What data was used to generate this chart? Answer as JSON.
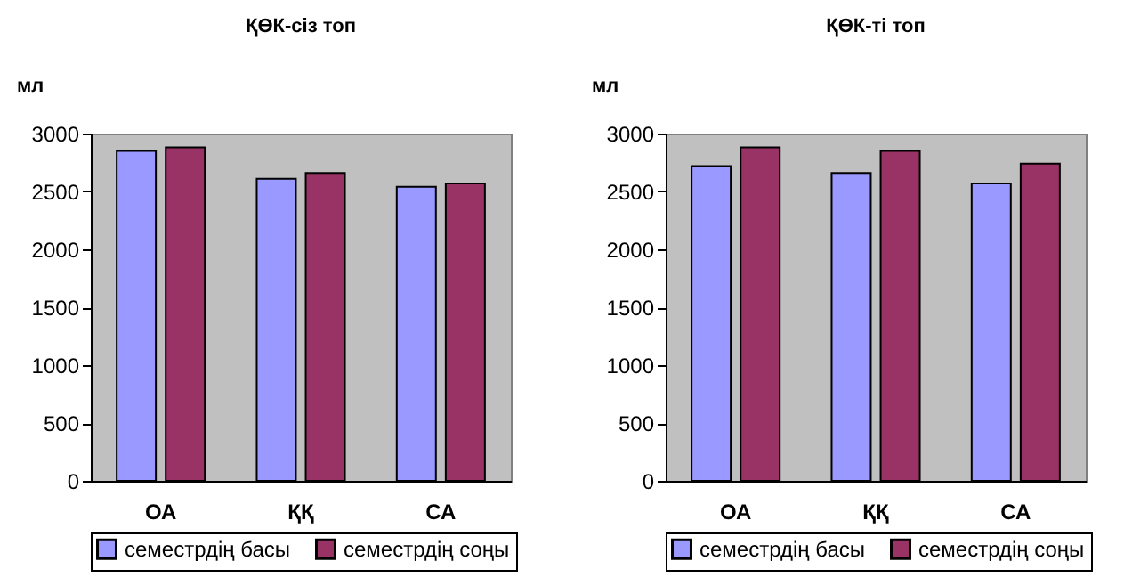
{
  "chart_data": [
    {
      "type": "bar",
      "title": "ҚӨК-сіз топ",
      "ylabel": "мл",
      "categories": [
        "ОА",
        "ҚҚ",
        "СА"
      ],
      "series": [
        {
          "name": "семестрдің басы",
          "color": "#9999ff",
          "values": [
            2850,
            2610,
            2540
          ]
        },
        {
          "name": "семестрдің соңы",
          "color": "#993366",
          "values": [
            2880,
            2660,
            2570
          ]
        }
      ],
      "ylim": [
        0,
        3000
      ],
      "yticks": [
        0,
        500,
        1000,
        1500,
        2000,
        2500,
        3000
      ],
      "grid": false,
      "legend": "bottom"
    },
    {
      "type": "bar",
      "title": "ҚӨК-ті топ",
      "ylabel": "мл",
      "categories": [
        "ОА",
        "ҚҚ",
        "СА"
      ],
      "series": [
        {
          "name": "семестрдің басы",
          "color": "#9999ff",
          "values": [
            2720,
            2660,
            2570
          ]
        },
        {
          "name": "семестрдің соңы",
          "color": "#993366",
          "values": [
            2880,
            2850,
            2740
          ]
        }
      ],
      "ylim": [
        0,
        3000
      ],
      "yticks": [
        0,
        500,
        1000,
        1500,
        2000,
        2500,
        3000
      ],
      "grid": false,
      "legend": "bottom"
    }
  ]
}
